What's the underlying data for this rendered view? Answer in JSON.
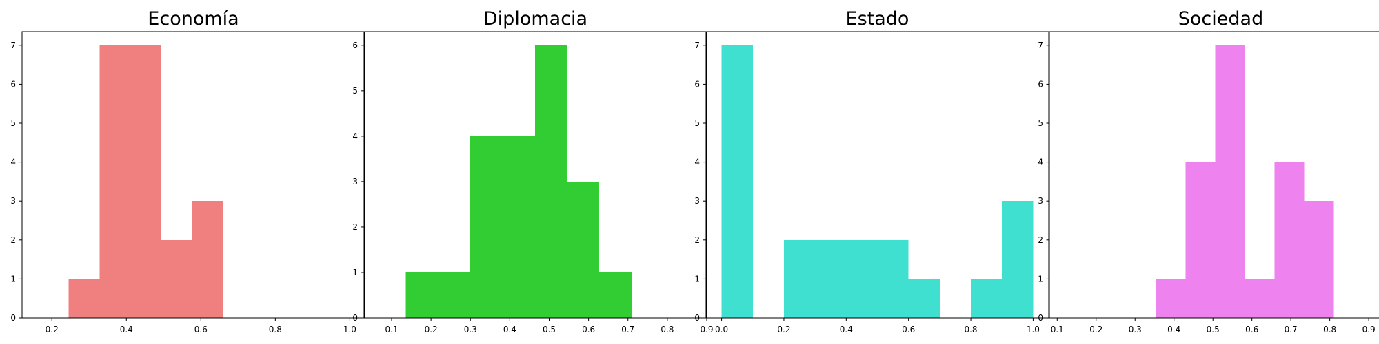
{
  "chart_data": [
    {
      "type": "bar",
      "title": "Economía",
      "color": "#f08080",
      "xlim": [
        0.12,
        1.04
      ],
      "ylim": [
        0,
        7.35
      ],
      "xticks": [
        "0.2",
        "0.4",
        "0.6",
        "0.8",
        "1.0"
      ],
      "yticks": [
        "0",
        "1",
        "2",
        "3",
        "4",
        "5",
        "6",
        "7"
      ],
      "bins": [
        {
          "x0": 0.245,
          "x1": 0.328,
          "count": 1
        },
        {
          "x0": 0.328,
          "x1": 0.411,
          "count": 7
        },
        {
          "x0": 0.411,
          "x1": 0.494,
          "count": 7
        },
        {
          "x0": 0.494,
          "x1": 0.577,
          "count": 2
        },
        {
          "x0": 0.577,
          "x1": 0.66,
          "count": 3
        }
      ]
    },
    {
      "type": "bar",
      "title": "Diplomacia",
      "color": "#32cd32",
      "xlim": [
        0.03,
        0.9
      ],
      "ylim": [
        0,
        6.3
      ],
      "xticks": [
        "0.1",
        "0.2",
        "0.3",
        "0.4",
        "0.5",
        "0.6",
        "0.7",
        "0.8",
        "0.9"
      ],
      "yticks": [
        "0",
        "1",
        "2",
        "3",
        "4",
        "5",
        "6"
      ],
      "bins": [
        {
          "x0": 0.136,
          "x1": 0.218,
          "count": 1
        },
        {
          "x0": 0.218,
          "x1": 0.3,
          "count": 1
        },
        {
          "x0": 0.3,
          "x1": 0.382,
          "count": 4
        },
        {
          "x0": 0.382,
          "x1": 0.464,
          "count": 4
        },
        {
          "x0": 0.464,
          "x1": 0.545,
          "count": 6
        },
        {
          "x0": 0.545,
          "x1": 0.627,
          "count": 3
        },
        {
          "x0": 0.627,
          "x1": 0.709,
          "count": 1
        }
      ]
    },
    {
      "type": "bar",
      "title": "Estado",
      "color": "#40e0d0",
      "xlim": [
        -0.05,
        1.05
      ],
      "ylim": [
        0,
        7.35
      ],
      "xticks": [
        "0.0",
        "0.2",
        "0.4",
        "0.6",
        "0.8",
        "1.0"
      ],
      "yticks": [
        "0",
        "1",
        "2",
        "3",
        "4",
        "5",
        "6",
        "7"
      ],
      "bins": [
        {
          "x0": 0.0,
          "x1": 0.1,
          "count": 7
        },
        {
          "x0": 0.2,
          "x1": 0.3,
          "count": 2
        },
        {
          "x0": 0.3,
          "x1": 0.4,
          "count": 2
        },
        {
          "x0": 0.4,
          "x1": 0.5,
          "count": 2
        },
        {
          "x0": 0.5,
          "x1": 0.6,
          "count": 2
        },
        {
          "x0": 0.6,
          "x1": 0.7,
          "count": 1
        },
        {
          "x0": 0.8,
          "x1": 0.9,
          "count": 1
        },
        {
          "x0": 0.9,
          "x1": 1.0,
          "count": 3
        }
      ]
    },
    {
      "type": "bar",
      "title": "Sociedad",
      "color": "#ee82ee",
      "xlim": [
        0.08,
        0.96
      ],
      "ylim": [
        0,
        7.35
      ],
      "xticks": [
        "0.1",
        "0.2",
        "0.3",
        "0.4",
        "0.5",
        "0.6",
        "0.7",
        "0.8",
        "0.9"
      ],
      "yticks": [
        "0",
        "1",
        "2",
        "3",
        "4",
        "5",
        "6",
        "7"
      ],
      "bins": [
        {
          "x0": 0.354,
          "x1": 0.43,
          "count": 1
        },
        {
          "x0": 0.43,
          "x1": 0.506,
          "count": 4
        },
        {
          "x0": 0.506,
          "x1": 0.582,
          "count": 7
        },
        {
          "x0": 0.582,
          "x1": 0.658,
          "count": 1
        },
        {
          "x0": 0.658,
          "x1": 0.734,
          "count": 4
        },
        {
          "x0": 0.734,
          "x1": 0.81,
          "count": 3
        }
      ]
    }
  ]
}
